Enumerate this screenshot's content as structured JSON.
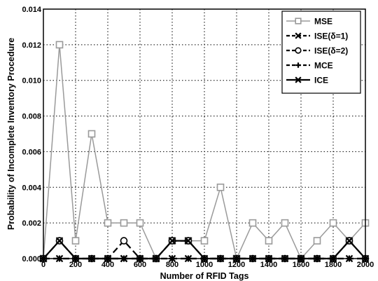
{
  "chart_data": {
    "type": "line",
    "title": "",
    "xlabel": "Number of RFID Tags",
    "ylabel": "Probability of Incomplete Inventory Procedure",
    "xlim": [
      0,
      2000
    ],
    "ylim": [
      0,
      0.014
    ],
    "x_ticks": [
      "0",
      "200",
      "400",
      "600",
      "800",
      "1000",
      "1200",
      "1400",
      "1600",
      "1800",
      "2000"
    ],
    "y_ticks": [
      "0.000",
      "0.002",
      "0.004",
      "0.006",
      "0.008",
      "0.010",
      "0.012",
      "0.014"
    ],
    "grid": true,
    "legend_position": "top-right",
    "series": [
      {
        "name": "MSE",
        "marker": "square",
        "line_style": "solid",
        "color": "#9a9a9a",
        "points": [
          [
            0,
            0
          ],
          [
            100,
            0.012
          ],
          [
            200,
            0.001
          ],
          [
            300,
            0.007
          ],
          [
            400,
            0.002
          ],
          [
            500,
            0.002
          ],
          [
            600,
            0.002
          ],
          [
            700,
            0
          ],
          [
            800,
            0.001
          ],
          [
            900,
            0.001
          ],
          [
            1000,
            0.001
          ],
          [
            1100,
            0.004
          ],
          [
            1200,
            0
          ],
          [
            1300,
            0.002
          ],
          [
            1400,
            0.001
          ],
          [
            1500,
            0.002
          ],
          [
            1600,
            0
          ],
          [
            1700,
            0.001
          ],
          [
            1800,
            0.002
          ],
          [
            1900,
            0.001
          ],
          [
            2000,
            0.002
          ]
        ]
      },
      {
        "name": "ISE(δ=1)",
        "marker": "x",
        "line_style": "dashed",
        "color": "#000000",
        "points": [
          [
            0,
            0
          ],
          [
            100,
            0
          ],
          [
            200,
            0
          ],
          [
            300,
            0
          ],
          [
            400,
            0
          ],
          [
            500,
            0
          ],
          [
            600,
            0
          ],
          [
            700,
            0
          ],
          [
            800,
            0
          ],
          [
            900,
            0
          ],
          [
            1000,
            0
          ],
          [
            1100,
            0
          ],
          [
            1200,
            0
          ],
          [
            1300,
            0
          ],
          [
            1400,
            0
          ],
          [
            1500,
            0
          ],
          [
            1600,
            0
          ],
          [
            1700,
            0
          ],
          [
            1800,
            0
          ],
          [
            1900,
            0
          ],
          [
            2000,
            0
          ]
        ]
      },
      {
        "name": "ISE(δ=2)",
        "marker": "circle",
        "line_style": "dashed",
        "color": "#000000",
        "points": [
          [
            0,
            0
          ],
          [
            100,
            0.001
          ],
          [
            200,
            0
          ],
          [
            300,
            0
          ],
          [
            400,
            0
          ],
          [
            500,
            0.001
          ],
          [
            600,
            0
          ],
          [
            700,
            0
          ],
          [
            800,
            0.001
          ],
          [
            900,
            0.001
          ],
          [
            1000,
            0
          ],
          [
            1100,
            0
          ],
          [
            1200,
            0
          ],
          [
            1300,
            0
          ],
          [
            1400,
            0
          ],
          [
            1500,
            0
          ],
          [
            1600,
            0
          ],
          [
            1700,
            0
          ],
          [
            1800,
            0
          ],
          [
            1900,
            0.001
          ],
          [
            2000,
            0
          ]
        ]
      },
      {
        "name": "MCE",
        "marker": "plus",
        "line_style": "dashed",
        "color": "#000000",
        "points": [
          [
            0,
            0
          ],
          [
            100,
            0
          ],
          [
            200,
            0
          ],
          [
            300,
            0
          ],
          [
            400,
            0
          ],
          [
            500,
            0
          ],
          [
            600,
            0
          ],
          [
            700,
            0
          ],
          [
            800,
            0
          ],
          [
            900,
            0
          ],
          [
            1000,
            0
          ],
          [
            1100,
            0
          ],
          [
            1200,
            0
          ],
          [
            1300,
            0
          ],
          [
            1400,
            0
          ],
          [
            1500,
            0
          ],
          [
            1600,
            0
          ],
          [
            1700,
            0
          ],
          [
            1800,
            0
          ],
          [
            1900,
            0
          ],
          [
            2000,
            0
          ]
        ]
      },
      {
        "name": "ICE",
        "marker": "x",
        "line_style": "solid",
        "color": "#000000",
        "points": [
          [
            0,
            0
          ],
          [
            100,
            0.001
          ],
          [
            200,
            0
          ],
          [
            300,
            0
          ],
          [
            400,
            0
          ],
          [
            500,
            0
          ],
          [
            600,
            0
          ],
          [
            700,
            0
          ],
          [
            800,
            0.001
          ],
          [
            900,
            0.001
          ],
          [
            1000,
            0
          ],
          [
            1100,
            0
          ],
          [
            1200,
            0
          ],
          [
            1300,
            0
          ],
          [
            1400,
            0
          ],
          [
            1500,
            0
          ],
          [
            1600,
            0
          ],
          [
            1700,
            0
          ],
          [
            1800,
            0
          ],
          [
            1900,
            0.001
          ],
          [
            2000,
            0
          ]
        ]
      }
    ]
  }
}
